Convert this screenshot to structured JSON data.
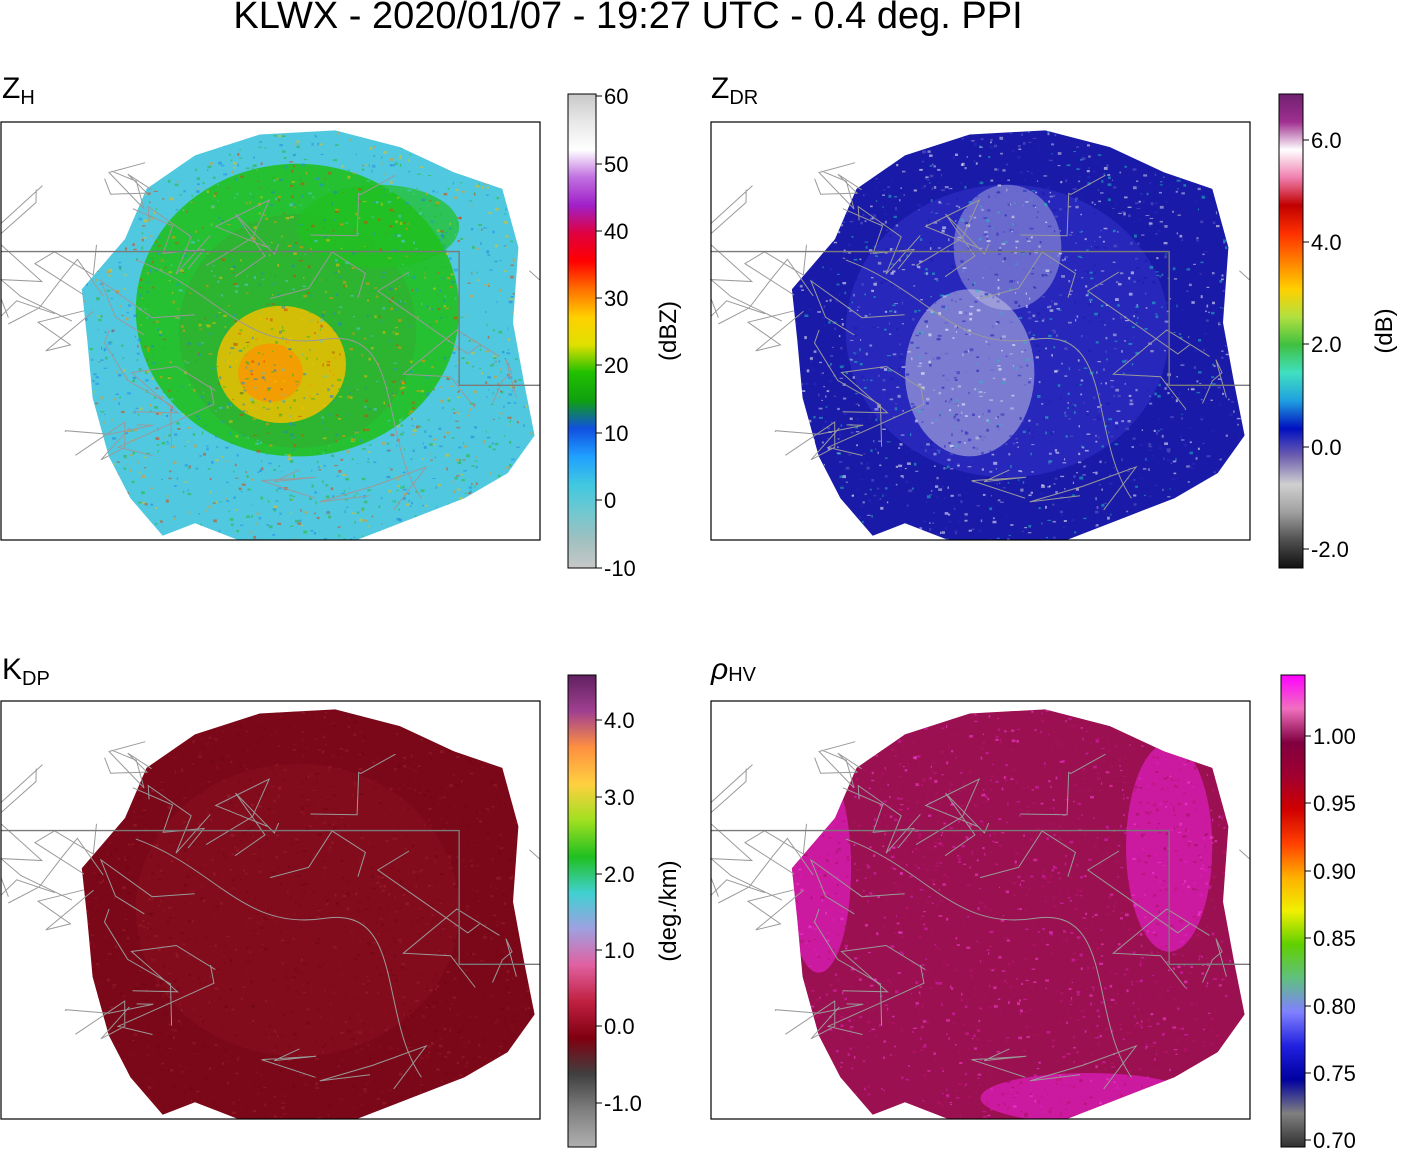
{
  "figure": {
    "title": "KLWX - 2020/01/07 - 19:27 UTC - 0.4 deg. PPI"
  },
  "panels": [
    {
      "id": "zh",
      "label_main": "Z",
      "label_sub": "H",
      "unit": "(dBZ)",
      "ticks": [
        "60",
        "50",
        "40",
        "30",
        "20",
        "10",
        "0",
        "-10"
      ],
      "colorbar_stops": [
        "#c8c8c8",
        "#e8e8e8",
        "#ffffff",
        "#c070e0",
        "#a020c8",
        "#e00040",
        "#ff0000",
        "#ff7000",
        "#ffd000",
        "#e0e000",
        "#20c000",
        "#10a010",
        "#1050e0",
        "#20a0ff",
        "#40c8e0",
        "#70c8d0",
        "#a0c0c0",
        "#c8c8c8"
      ],
      "field_colors": [
        "#50c8e0",
        "#2090e8",
        "#1f7fd8",
        "#20c020",
        "#30b030",
        "#f0c000",
        "#ff9000",
        "#e04000"
      ]
    },
    {
      "id": "zdr",
      "label_main": "Z",
      "label_sub": "DR",
      "unit": "(dB)",
      "ticks": [
        "6.0",
        "4.0",
        "2.0",
        "0.0",
        "-2.0"
      ],
      "colorbar_stops": [
        "#702070",
        "#a03090",
        "#ffffff",
        "#f080b0",
        "#c00000",
        "#ff3000",
        "#ff8000",
        "#ffd000",
        "#b0e040",
        "#40c040",
        "#40e0c0",
        "#20a0e0",
        "#0010c0",
        "#7060b0",
        "#d0d0d0",
        "#a0a0a0",
        "#505050",
        "#101010"
      ],
      "field_colors": [
        "#1a1aa8",
        "#2a2ac0",
        "#6060c8",
        "#d0d0e8",
        "#ffffff",
        "#20c0c0"
      ]
    },
    {
      "id": "kdp",
      "label_main": "K",
      "label_sub": "DP",
      "unit": "(deg./km)",
      "ticks": [
        "4.0",
        "3.0",
        "2.0",
        "1.0",
        "0.0",
        "-1.0"
      ],
      "colorbar_stops": [
        "#602060",
        "#a04090",
        "#ff9040",
        "#ffd040",
        "#a0e020",
        "#20c020",
        "#40d0d0",
        "#a0a0e0",
        "#e060a0",
        "#c02040",
        "#800010",
        "#404040",
        "#808080",
        "#b0b0b0"
      ],
      "field_colors": [
        "#7a0818",
        "#8a1020",
        "#6e0614",
        "#9a2030"
      ]
    },
    {
      "id": "rhohv",
      "label_main": "ρ",
      "label_sub": "HV",
      "unit": "",
      "ticks": [
        "1.00",
        "0.95",
        "0.90",
        "0.85",
        "0.80",
        "0.75",
        "0.70"
      ],
      "colorbar_stops": [
        "#ff00ff",
        "#f070c0",
        "#800040",
        "#a00030",
        "#d00000",
        "#ff4000",
        "#ffb000",
        "#f0f000",
        "#60d000",
        "#60c080",
        "#8080ff",
        "#2020e0",
        "#0000a0",
        "#808080",
        "#303030"
      ],
      "field_colors": [
        "#9a1050",
        "#a81860",
        "#e020c0",
        "#ff40e0",
        "#c01070"
      ]
    }
  ]
}
